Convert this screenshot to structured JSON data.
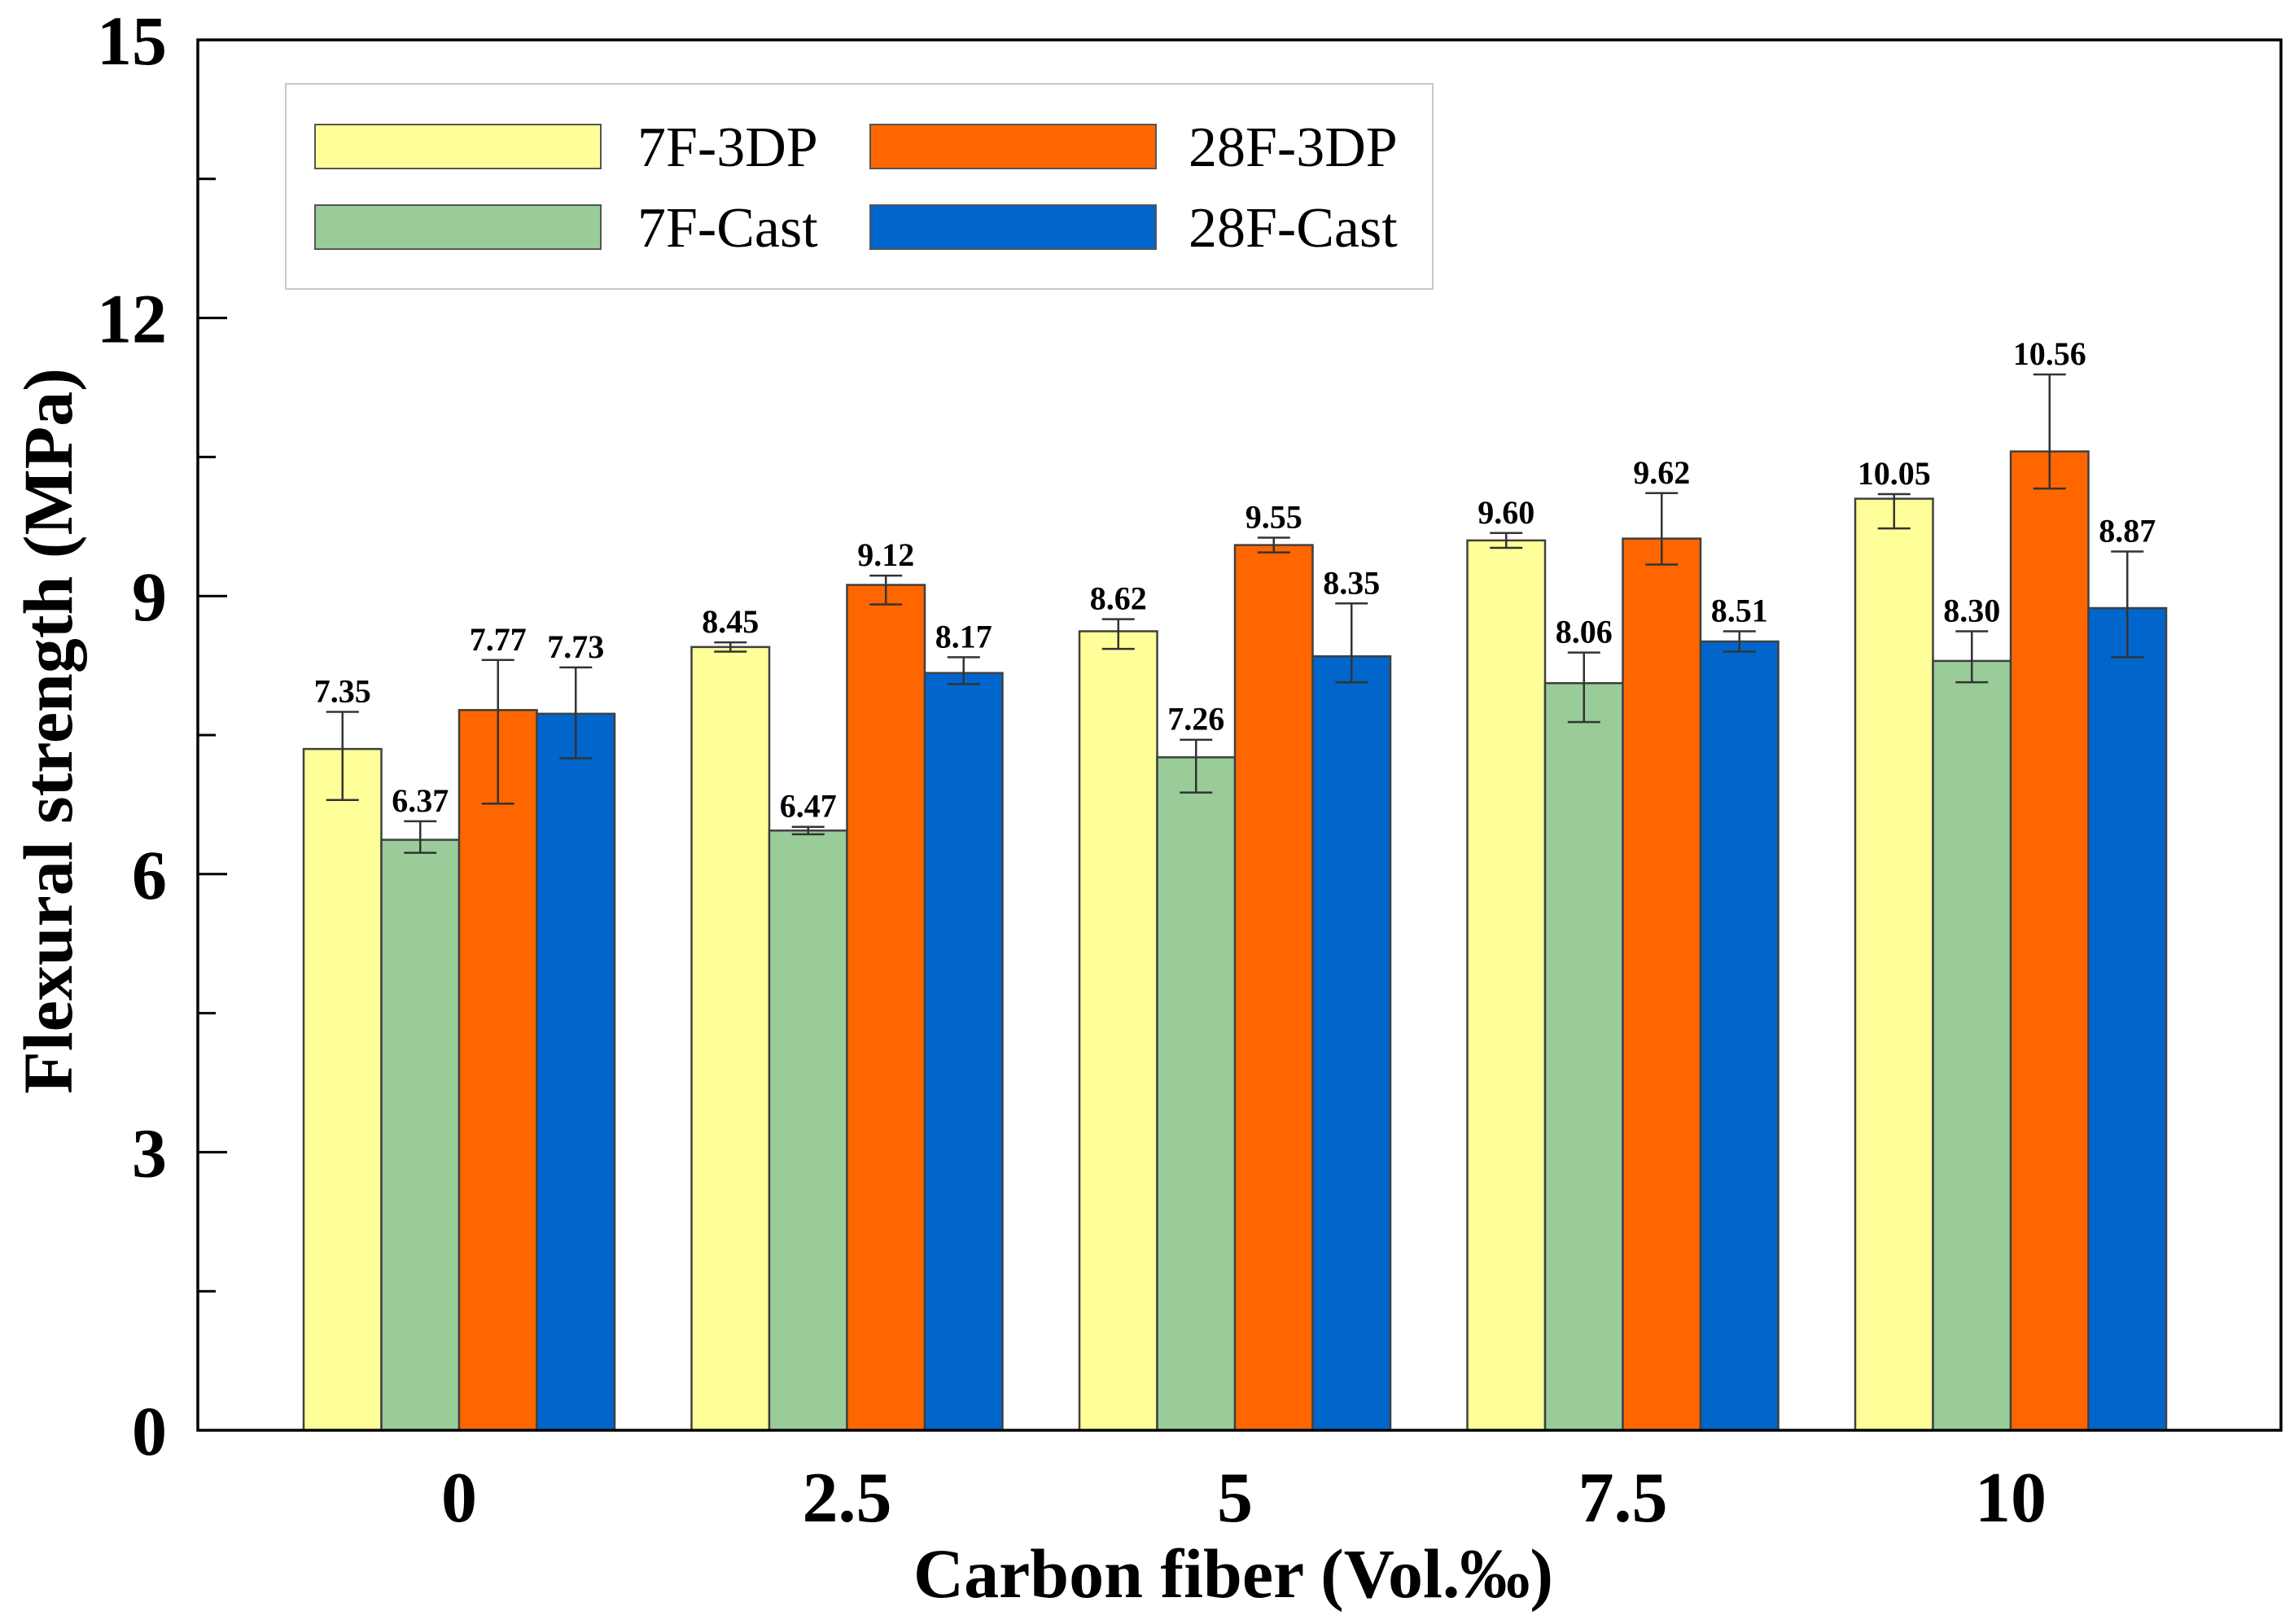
{
  "chart_data": {
    "type": "bar",
    "title": "",
    "xlabel": "Carbon fiber (Vol.‰)",
    "ylabel": "Flexural strength (MPa)",
    "categories": [
      "0",
      "2.5",
      "5",
      "7.5",
      "10"
    ],
    "ylim": [
      0,
      15
    ],
    "yticks": [
      0,
      3,
      6,
      9,
      12,
      15
    ],
    "yminor_step": 1.5,
    "grid": false,
    "legend": {
      "position": "top-left",
      "columns": 2
    },
    "series": [
      {
        "name": "7F-3DP",
        "color": "#FFFF99",
        "values": [
          7.35,
          8.45,
          8.62,
          9.6,
          10.05
        ],
        "value_labels": [
          "7.35",
          "8.45",
          "8.62",
          "9.60",
          "10.05"
        ],
        "error_high": [
          0.4,
          0.05,
          0.13,
          0.08,
          0.05
        ],
        "error_low": [
          0.55,
          0.05,
          0.19,
          0.08,
          0.32
        ]
      },
      {
        "name": "7F-Cast",
        "color": "#99CC99",
        "values": [
          6.37,
          6.47,
          7.26,
          8.06,
          8.3
        ],
        "value_labels": [
          "6.37",
          "6.47",
          "7.26",
          "8.06",
          "8.30"
        ],
        "error_high": [
          0.2,
          0.04,
          0.19,
          0.33,
          0.32
        ],
        "error_low": [
          0.14,
          0.04,
          0.38,
          0.42,
          0.23
        ]
      },
      {
        "name": "28F-3DP",
        "color": "#FF6600",
        "values": [
          7.77,
          9.12,
          9.55,
          9.62,
          10.56
        ],
        "value_labels": [
          "7.77",
          "9.12",
          "9.55",
          "9.62",
          "10.56"
        ],
        "error_high": [
          0.54,
          0.1,
          0.08,
          0.49,
          0.83
        ],
        "error_low": [
          1.01,
          0.21,
          0.08,
          0.28,
          0.4
        ]
      },
      {
        "name": "28F-Cast",
        "color": "#0066CC",
        "values": [
          7.73,
          8.17,
          8.35,
          8.51,
          8.87
        ],
        "value_labels": [
          "7.73",
          "8.17",
          "8.35",
          "8.51",
          "8.87"
        ],
        "error_high": [
          0.5,
          0.17,
          0.57,
          0.11,
          0.61
        ],
        "error_low": [
          0.48,
          0.12,
          0.28,
          0.11,
          0.53
        ]
      }
    ]
  }
}
